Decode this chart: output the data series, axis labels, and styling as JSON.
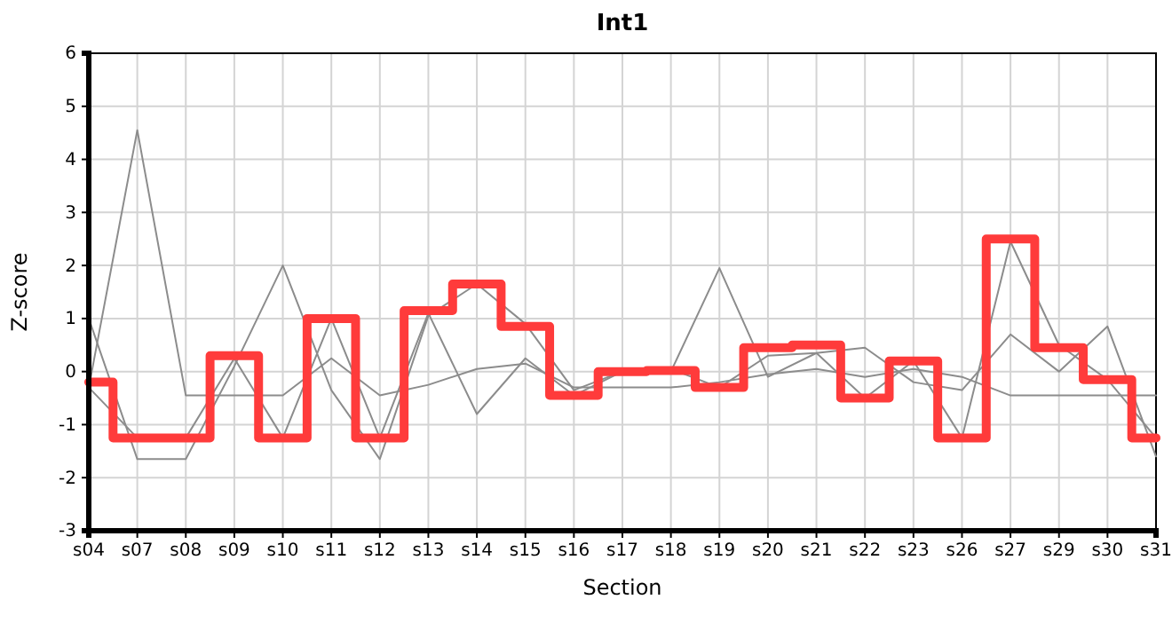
{
  "chart_data": {
    "type": "line",
    "title": "Int1",
    "xlabel": "Section",
    "ylabel": "Z-score",
    "categories": [
      "s04",
      "s07",
      "s08",
      "s09",
      "s10",
      "s11",
      "s12",
      "s13",
      "s14",
      "s15",
      "s16",
      "s17",
      "s18",
      "s19",
      "s20",
      "s21",
      "s22",
      "s23",
      "s26",
      "s27",
      "s29",
      "s30",
      "s31"
    ],
    "ylim": [
      -3,
      6
    ],
    "yticks": [
      -3,
      -2,
      -1,
      0,
      1,
      2,
      3,
      4,
      5,
      6
    ],
    "grid": true,
    "series": [
      {
        "color": "#8c8c8c",
        "values": [
          -0.3,
          4.55,
          -0.45,
          -0.45,
          -0.45,
          0.25,
          -0.45,
          -0.25,
          0.05,
          0.15,
          -0.3,
          -0.3,
          -0.3,
          -0.2,
          -0.05,
          0.05,
          -0.1,
          0.05,
          -0.1,
          -0.45,
          -0.45,
          -0.45,
          -0.45
        ]
      },
      {
        "color": "#8c8c8c",
        "values": [
          1.0,
          -1.65,
          -1.65,
          0.1,
          2.0,
          -0.35,
          -1.65,
          1.05,
          1.65,
          0.9,
          -0.35,
          0.0,
          0.0,
          1.95,
          -0.1,
          0.35,
          -0.5,
          0.2,
          -1.25,
          2.45,
          0.5,
          -0.15,
          -1.25
        ]
      },
      {
        "color": "#8c8c8c",
        "values": [
          -0.3,
          -1.25,
          -1.25,
          0.25,
          -1.25,
          1.0,
          -1.25,
          1.1,
          -0.8,
          0.25,
          -0.45,
          0.0,
          0.05,
          -0.3,
          0.3,
          0.35,
          0.45,
          -0.2,
          -0.35,
          0.7,
          0.0,
          0.85,
          -1.6
        ]
      },
      {
        "type": "step",
        "color": "#ff3b3b",
        "values": [
          -0.2,
          -1.25,
          -1.25,
          0.3,
          -1.25,
          1.0,
          -1.25,
          1.15,
          1.65,
          0.85,
          -0.45,
          0.0,
          0.02,
          -0.3,
          0.45,
          0.5,
          -0.5,
          0.2,
          -1.25,
          2.5,
          0.45,
          -0.15,
          -1.25
        ]
      }
    ]
  }
}
